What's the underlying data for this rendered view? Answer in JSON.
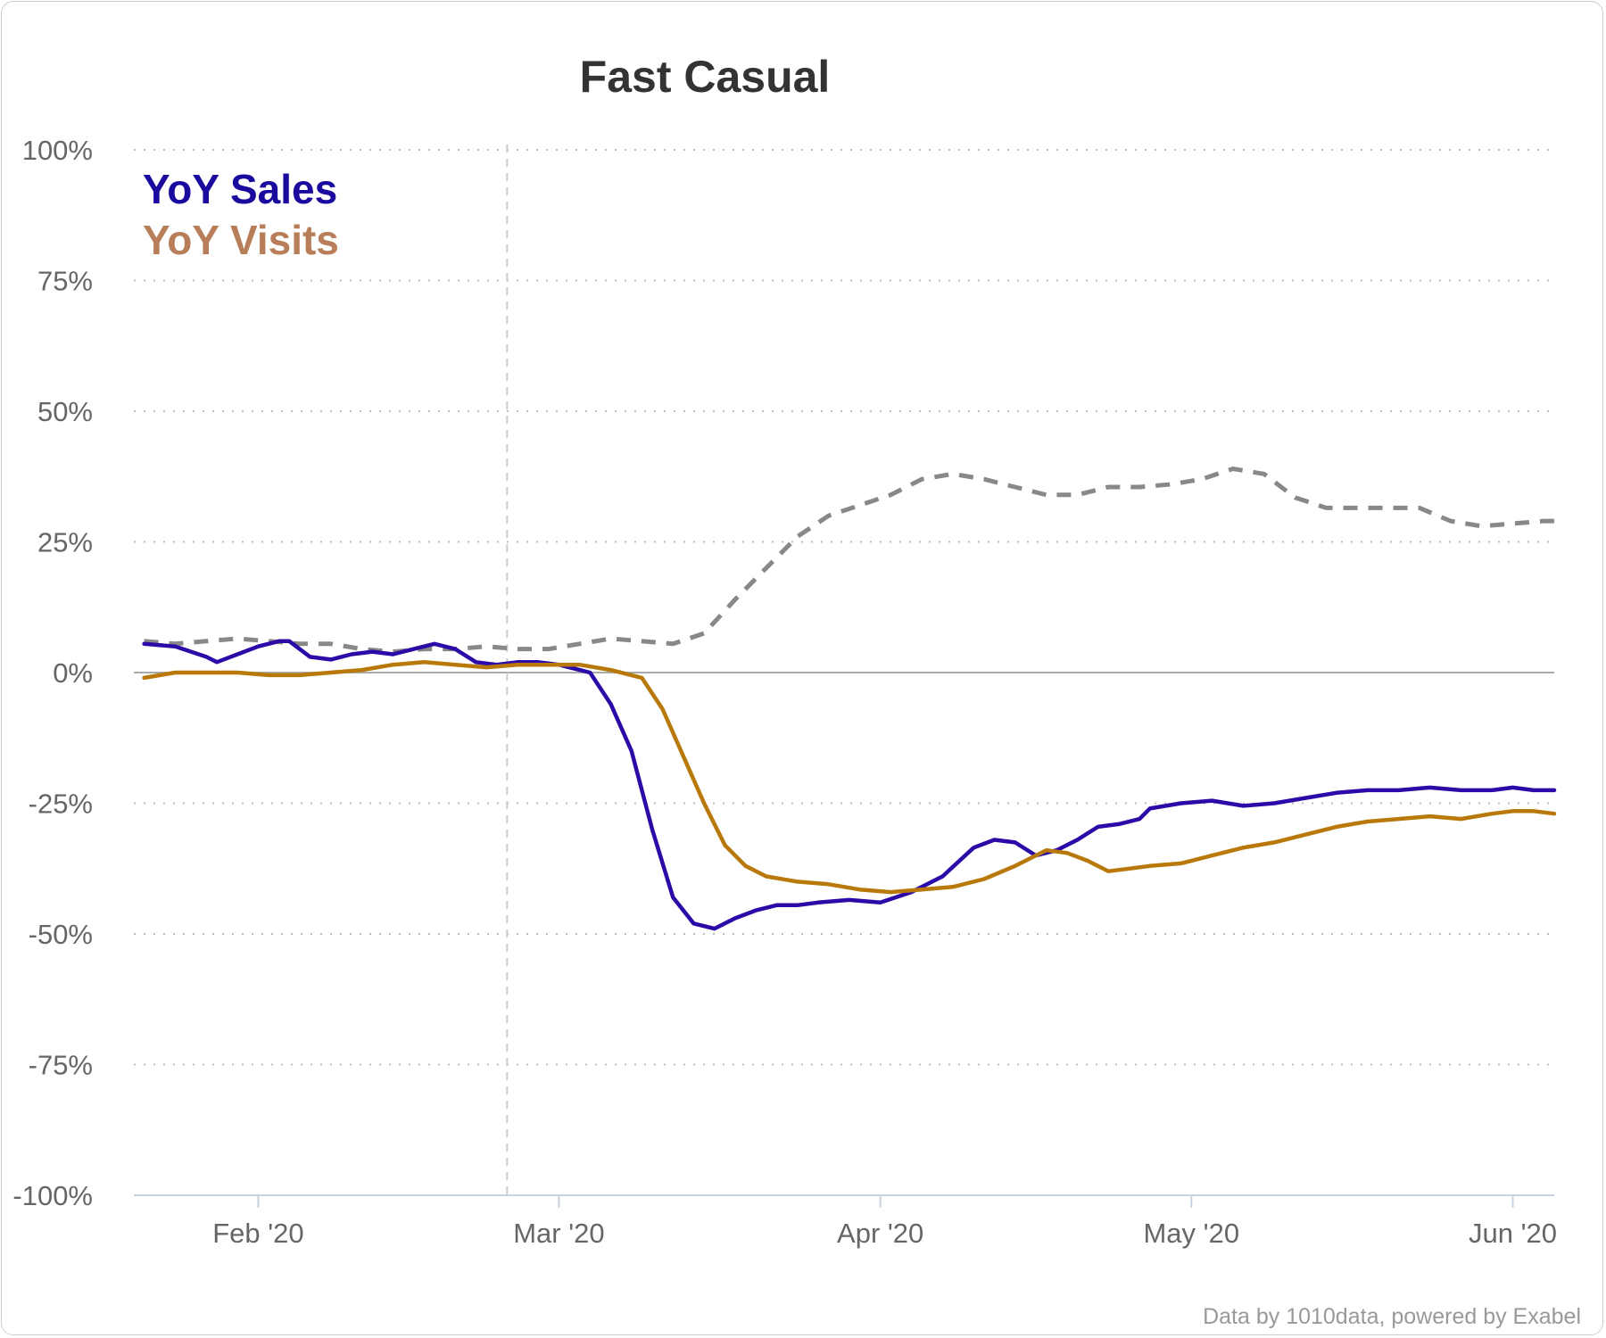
{
  "chart_data": {
    "type": "line",
    "title": "Fast Casual",
    "credit": "Data by 1010data, powered by Exabel",
    "xlabel": "",
    "ylabel": "",
    "ylim": [
      -100,
      100
    ],
    "xlim": [
      "2020-01-20",
      "2020-06-05"
    ],
    "y_ticks": [
      100,
      75,
      50,
      25,
      0,
      -25,
      -50,
      -75,
      -100
    ],
    "y_tick_labels": [
      "100%",
      "75%",
      "50%",
      "25%",
      "0%",
      "-25%",
      "-50%",
      "-75%",
      "-100%"
    ],
    "x_ticks": [
      "2020-02-01",
      "2020-03-01",
      "2020-04-01",
      "2020-05-01",
      "2020-06-01"
    ],
    "x_tick_labels": [
      "Feb '20",
      "Mar '20",
      "Apr '20",
      "May '20",
      "Jun '20"
    ],
    "grid": "horizontal dotted",
    "legend_position": "top-left",
    "reference_line": {
      "date": "2020-02-25",
      "style": "dashed"
    },
    "colors": {
      "sales": "#2b0aa8",
      "visits": "#b8790a",
      "dashed": "#888888",
      "zero": "#aaaaaa"
    },
    "series": [
      {
        "name": "YoY Sales",
        "color": "#2b0aa8",
        "legend_color": "#1a0a9e",
        "x": [
          "2020-01-21",
          "2020-01-24",
          "2020-01-27",
          "2020-01-28",
          "2020-01-30",
          "2020-02-01",
          "2020-02-03",
          "2020-02-04",
          "2020-02-06",
          "2020-02-08",
          "2020-02-10",
          "2020-02-12",
          "2020-02-14",
          "2020-02-16",
          "2020-02-18",
          "2020-02-20",
          "2020-02-22",
          "2020-02-24",
          "2020-02-26",
          "2020-02-28",
          "2020-03-01",
          "2020-03-04",
          "2020-03-06",
          "2020-03-08",
          "2020-03-10",
          "2020-03-12",
          "2020-03-14",
          "2020-03-16",
          "2020-03-18",
          "2020-03-20",
          "2020-03-22",
          "2020-03-24",
          "2020-03-26",
          "2020-03-29",
          "2020-04-01",
          "2020-04-04",
          "2020-04-07",
          "2020-04-10",
          "2020-04-12",
          "2020-04-14",
          "2020-04-16",
          "2020-04-18",
          "2020-04-20",
          "2020-04-22",
          "2020-04-24",
          "2020-04-26",
          "2020-04-27",
          "2020-04-30",
          "2020-05-03",
          "2020-05-06",
          "2020-05-09",
          "2020-05-12",
          "2020-05-15",
          "2020-05-18",
          "2020-05-21",
          "2020-05-24",
          "2020-05-27",
          "2020-05-30",
          "2020-06-01",
          "2020-06-03",
          "2020-06-05"
        ],
        "values": [
          5.5,
          5,
          3,
          2,
          3.5,
          5,
          6,
          6,
          3,
          2.5,
          3.5,
          4,
          3.5,
          4.5,
          5.5,
          4.5,
          2,
          1.5,
          2,
          2,
          1.5,
          0,
          -6,
          -15,
          -30,
          -43,
          -48,
          -49,
          -47,
          -45.5,
          -44.5,
          -44.5,
          -44,
          -43.5,
          -44,
          -42,
          -39,
          -33.5,
          -32,
          -32.5,
          -35,
          -34,
          -32,
          -29.5,
          -29,
          -28,
          -26,
          -25,
          -24.5,
          -25.5,
          -25,
          -24,
          -23,
          -22.5,
          -22.5,
          -22,
          -22.5,
          -22.5,
          -22,
          -22.5,
          -22.5
        ]
      },
      {
        "name": "YoY Visits",
        "color": "#b8790a",
        "legend_color": "#b87e5a",
        "x": [
          "2020-01-21",
          "2020-01-24",
          "2020-01-27",
          "2020-01-30",
          "2020-02-02",
          "2020-02-05",
          "2020-02-08",
          "2020-02-11",
          "2020-02-14",
          "2020-02-17",
          "2020-02-20",
          "2020-02-23",
          "2020-02-26",
          "2020-02-29",
          "2020-03-03",
          "2020-03-06",
          "2020-03-09",
          "2020-03-11",
          "2020-03-13",
          "2020-03-15",
          "2020-03-17",
          "2020-03-19",
          "2020-03-21",
          "2020-03-24",
          "2020-03-27",
          "2020-03-30",
          "2020-04-02",
          "2020-04-05",
          "2020-04-08",
          "2020-04-11",
          "2020-04-14",
          "2020-04-17",
          "2020-04-19",
          "2020-04-21",
          "2020-04-23",
          "2020-04-25",
          "2020-04-27",
          "2020-04-30",
          "2020-05-03",
          "2020-05-06",
          "2020-05-09",
          "2020-05-12",
          "2020-05-15",
          "2020-05-18",
          "2020-05-21",
          "2020-05-24",
          "2020-05-27",
          "2020-05-30",
          "2020-06-01",
          "2020-06-03",
          "2020-06-05"
        ],
        "values": [
          -1,
          0,
          0,
          0,
          -0.5,
          -0.5,
          0,
          0.5,
          1.5,
          2,
          1.5,
          1,
          1.5,
          1.5,
          1.5,
          0.5,
          -1,
          -7,
          -16,
          -25,
          -33,
          -37,
          -39,
          -40,
          -40.5,
          -41.5,
          -42,
          -41.5,
          -41,
          -39.5,
          -37,
          -34,
          -34.5,
          -36,
          -38,
          -37.5,
          -37,
          -36.5,
          -35,
          -33.5,
          -32.5,
          -31,
          -29.5,
          -28.5,
          -28,
          -27.5,
          -28,
          -27,
          -26.5,
          -26.5,
          -27
        ]
      },
      {
        "name": "",
        "color": "#888888",
        "dashed": true,
        "x": [
          "2020-01-21",
          "2020-01-24",
          "2020-01-27",
          "2020-01-30",
          "2020-02-02",
          "2020-02-05",
          "2020-02-08",
          "2020-02-11",
          "2020-02-14",
          "2020-02-17",
          "2020-02-20",
          "2020-02-23",
          "2020-02-26",
          "2020-02-29",
          "2020-03-03",
          "2020-03-06",
          "2020-03-09",
          "2020-03-12",
          "2020-03-15",
          "2020-03-18",
          "2020-03-21",
          "2020-03-24",
          "2020-03-27",
          "2020-03-30",
          "2020-04-02",
          "2020-04-05",
          "2020-04-08",
          "2020-04-11",
          "2020-04-14",
          "2020-04-17",
          "2020-04-20",
          "2020-04-23",
          "2020-04-26",
          "2020-04-29",
          "2020-05-02",
          "2020-05-05",
          "2020-05-08",
          "2020-05-11",
          "2020-05-14",
          "2020-05-17",
          "2020-05-20",
          "2020-05-23",
          "2020-05-26",
          "2020-05-29",
          "2020-06-01",
          "2020-06-04",
          "2020-06-05"
        ],
        "values": [
          6,
          5.5,
          6,
          6.5,
          6,
          5.5,
          5.5,
          4.5,
          4,
          4.5,
          4.5,
          5,
          4.5,
          4.5,
          5.5,
          6.5,
          6,
          5.5,
          7.5,
          14,
          20,
          26,
          30,
          32,
          34,
          37,
          38,
          37,
          35.5,
          34,
          34,
          35.5,
          35.5,
          36,
          37,
          39,
          38,
          33.5,
          31.5,
          31.5,
          31.5,
          31.5,
          29,
          28,
          28.5,
          29,
          29
        ]
      }
    ]
  }
}
